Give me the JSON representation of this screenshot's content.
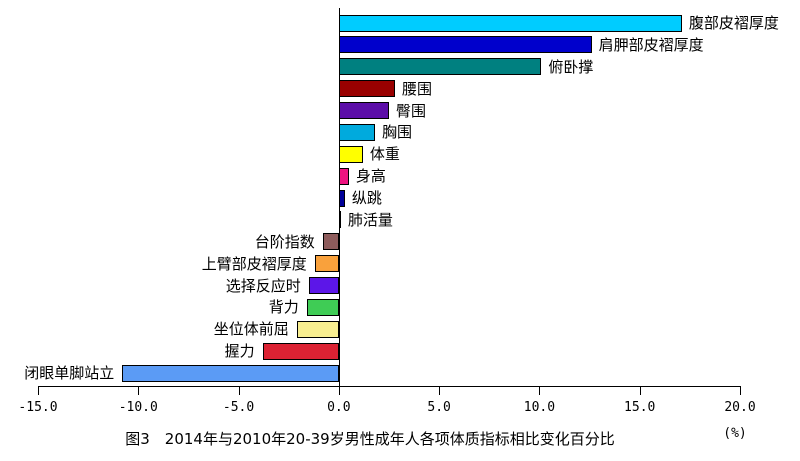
{
  "chart_data": {
    "type": "bar",
    "orientation": "horizontal",
    "title": "图3　2014年与2010年20-39岁男性成年人各项体质指标相比变化百分比",
    "unit_label": "(%)",
    "xlabel": "",
    "ylabel": "",
    "xlim": [
      -15.0,
      20.0
    ],
    "grid": false,
    "legend": "none",
    "x_ticks": [
      -15.0,
      -10.0,
      -5.0,
      0.0,
      5.0,
      10.0,
      15.0,
      20.0
    ],
    "x_tick_labels": [
      "-15.0",
      "-10.0",
      "-5.0",
      "0.0",
      "5.0",
      "10.0",
      "15.0",
      "20.0"
    ],
    "items": [
      {
        "label": "腹部皮褶厚度",
        "value": 17.1,
        "color": "#00CCFF"
      },
      {
        "label": "肩胛部皮褶厚度",
        "value": 12.6,
        "color": "#0000CC"
      },
      {
        "label": "俯卧撑",
        "value": 10.1,
        "color": "#008080"
      },
      {
        "label": "腰围",
        "value": 2.8,
        "color": "#990000"
      },
      {
        "label": "臀围",
        "value": 2.5,
        "color": "#5C0DA8"
      },
      {
        "label": "胸围",
        "value": 1.8,
        "color": "#00AADD"
      },
      {
        "label": "体重",
        "value": 1.2,
        "color": "#FFFF00"
      },
      {
        "label": "身高",
        "value": 0.5,
        "color": "#EE1380"
      },
      {
        "label": "纵跳",
        "value": 0.3,
        "color": "#000099"
      },
      {
        "label": "肺活量",
        "value": 0.1,
        "color": "#000000"
      },
      {
        "label": "台阶指数",
        "value": -0.8,
        "color": "#8E5C5C"
      },
      {
        "label": "上臂部皮褶厚度",
        "value": -1.2,
        "color": "#F9A13C"
      },
      {
        "label": "选择反应时",
        "value": -1.5,
        "color": "#5C16E8"
      },
      {
        "label": "背力",
        "value": -1.6,
        "color": "#3FCC55"
      },
      {
        "label": "坐位体前屈",
        "value": -2.1,
        "color": "#F8EE90"
      },
      {
        "label": "握力",
        "value": -3.8,
        "color": "#DC2233"
      },
      {
        "label": "闭眼单脚站立",
        "value": -10.8,
        "color": "#5B9BF5"
      }
    ]
  }
}
